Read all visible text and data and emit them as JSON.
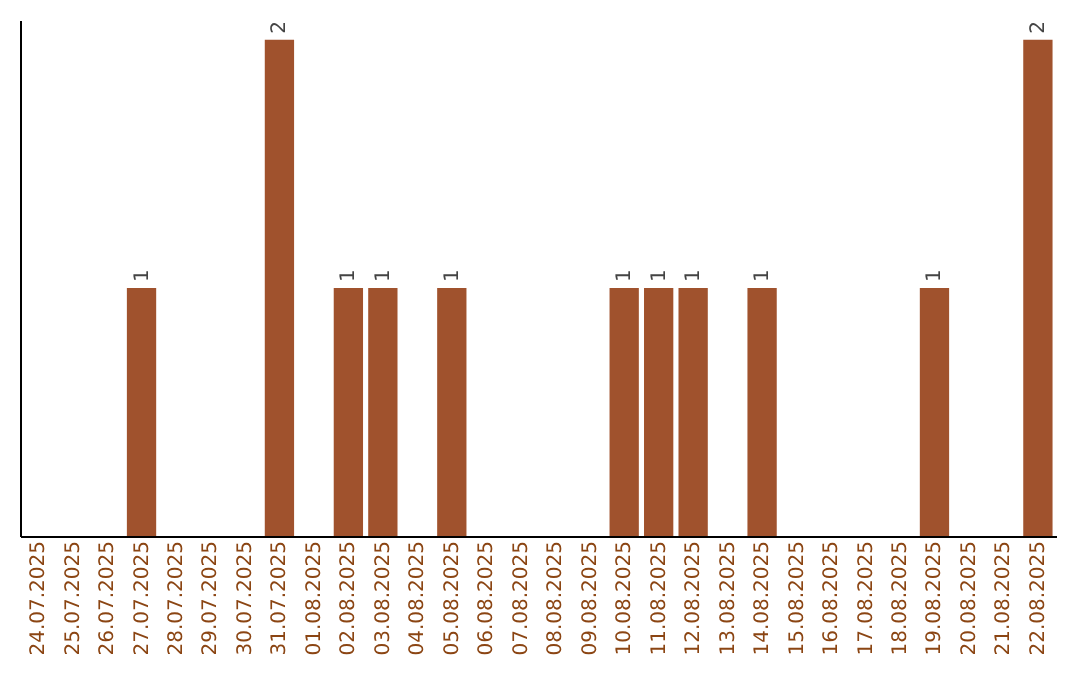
{
  "chart_data": {
    "type": "bar",
    "categories": [
      "24.07.2025",
      "25.07.2025",
      "26.07.2025",
      "27.07.2025",
      "28.07.2025",
      "29.07.2025",
      "30.07.2025",
      "31.07.2025",
      "01.08.2025",
      "02.08.2025",
      "03.08.2025",
      "04.08.2025",
      "05.08.2025",
      "06.08.2025",
      "07.08.2025",
      "08.08.2025",
      "09.08.2025",
      "10.08.2025",
      "11.08.2025",
      "12.08.2025",
      "13.08.2025",
      "14.08.2025",
      "15.08.2025",
      "16.08.2025",
      "17.08.2025",
      "18.08.2025",
      "19.08.2025",
      "20.08.2025",
      "21.08.2025",
      "22.08.2025"
    ],
    "values": [
      0,
      0,
      0,
      1,
      0,
      0,
      0,
      2,
      0,
      1,
      1,
      0,
      1,
      0,
      0,
      0,
      0,
      1,
      1,
      1,
      0,
      1,
      0,
      0,
      0,
      0,
      1,
      0,
      0,
      2
    ],
    "value_labels": [
      null,
      null,
      null,
      "1",
      null,
      null,
      null,
      "2",
      null,
      "1",
      "1",
      null,
      "1",
      null,
      null,
      null,
      null,
      "1",
      "1",
      "1",
      null,
      "1",
      null,
      null,
      null,
      null,
      "1",
      null,
      null,
      "2"
    ],
    "color": "#a0522d",
    "ylim": [
      0,
      2.08
    ],
    "tick_labels": "x",
    "grid": false
  }
}
